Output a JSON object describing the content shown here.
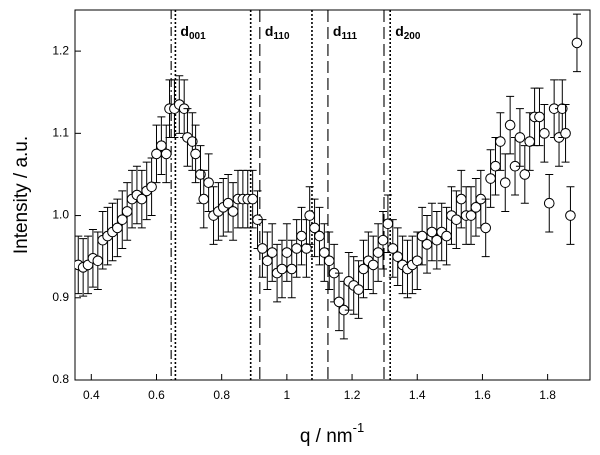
{
  "chart_data": {
    "type": "scatter",
    "xlabel": "q / nm",
    "xlabel_sup": "-1",
    "ylabel": "Intensity / a.u.",
    "xlim": [
      0.35,
      1.93
    ],
    "ylim": [
      0.8,
      1.25
    ],
    "xticks": [
      0.4,
      0.6,
      0.8,
      1.0,
      1.2,
      1.4,
      1.6,
      1.8
    ],
    "yticks": [
      0.8,
      0.9,
      {
        "value": 1,
        "label": "1.0"
      },
      1.1,
      1.2
    ],
    "marker_color": "#ffffff",
    "edge_color": "#000000",
    "error": 0.035,
    "vlines": [
      {
        "x": 0.645,
        "style": "dashdot"
      },
      {
        "x": 0.658,
        "style": "dotted"
      },
      {
        "x": 0.889,
        "style": "dotted"
      },
      {
        "x": 0.917,
        "style": "dashed"
      },
      {
        "x": 1.077,
        "style": "dotted"
      },
      {
        "x": 1.126,
        "style": "dashed"
      },
      {
        "x": 1.298,
        "style": "dashed"
      },
      {
        "x": 1.317,
        "style": "dotted"
      }
    ],
    "annotations": [
      {
        "text": "d",
        "sub": "001"
      },
      {
        "text": "d",
        "sub": "110"
      },
      {
        "text": "d",
        "sub": "111"
      },
      {
        "text": "d",
        "sub": "200"
      }
    ],
    "x": [
      0.36,
      0.375,
      0.39,
      0.405,
      0.42,
      0.435,
      0.45,
      0.465,
      0.48,
      0.495,
      0.51,
      0.525,
      0.54,
      0.555,
      0.57,
      0.585,
      0.6,
      0.615,
      0.63,
      0.64,
      0.655,
      0.67,
      0.685,
      0.695,
      0.71,
      0.72,
      0.735,
      0.745,
      0.76,
      0.775,
      0.79,
      0.805,
      0.82,
      0.835,
      0.85,
      0.865,
      0.88,
      0.895,
      0.91,
      0.925,
      0.94,
      0.955,
      0.97,
      0.985,
      1.0,
      1.015,
      1.03,
      1.045,
      1.06,
      1.07,
      1.085,
      1.1,
      1.115,
      1.13,
      1.145,
      1.16,
      1.175,
      1.19,
      1.205,
      1.22,
      1.235,
      1.25,
      1.265,
      1.28,
      1.295,
      1.31,
      1.325,
      1.34,
      1.355,
      1.37,
      1.385,
      1.4,
      1.415,
      1.43,
      1.445,
      1.46,
      1.475,
      1.49,
      1.505,
      1.52,
      1.535,
      1.55,
      1.565,
      1.58,
      1.595,
      1.61,
      1.625,
      1.64,
      1.655,
      1.67,
      1.685,
      1.7,
      1.715,
      1.73,
      1.745,
      1.76,
      1.775,
      1.79,
      1.805,
      1.82,
      1.835,
      1.845,
      1.855,
      1.87,
      1.89
    ],
    "values": [
      0.94,
      0.937,
      0.94,
      0.948,
      0.945,
      0.97,
      0.975,
      0.98,
      0.985,
      0.995,
      1.005,
      1.02,
      1.025,
      1.02,
      1.03,
      1.035,
      1.075,
      1.085,
      1.075,
      1.13,
      1.13,
      1.135,
      1.13,
      1.095,
      1.09,
      1.075,
      1.05,
      1.02,
      1.04,
      1.0,
      1.005,
      1.01,
      1.015,
      1.005,
      1.02,
      1.02,
      1.02,
      1.02,
      0.995,
      0.96,
      0.945,
      0.955,
      0.93,
      0.935,
      0.955,
      0.935,
      0.96,
      0.975,
      0.96,
      1.0,
      0.985,
      0.975,
      0.955,
      0.945,
      0.93,
      0.895,
      0.885,
      0.92,
      0.915,
      0.91,
      0.935,
      0.945,
      0.94,
      0.955,
      0.97,
      0.99,
      0.96,
      0.95,
      0.94,
      0.935,
      0.94,
      0.945,
      0.975,
      0.965,
      0.98,
      0.97,
      0.98,
      0.975,
      1.0,
      0.995,
      1.02,
      1.0,
      1.0,
      1.01,
      1.02,
      0.985,
      1.045,
      1.06,
      1.09,
      1.04,
      1.11,
      1.06,
      1.095,
      1.05,
      1.09,
      1.12,
      1.12,
      1.1,
      1.015,
      1.13,
      1.095,
      1.13,
      1.1,
      1.0,
      1.21
    ]
  }
}
